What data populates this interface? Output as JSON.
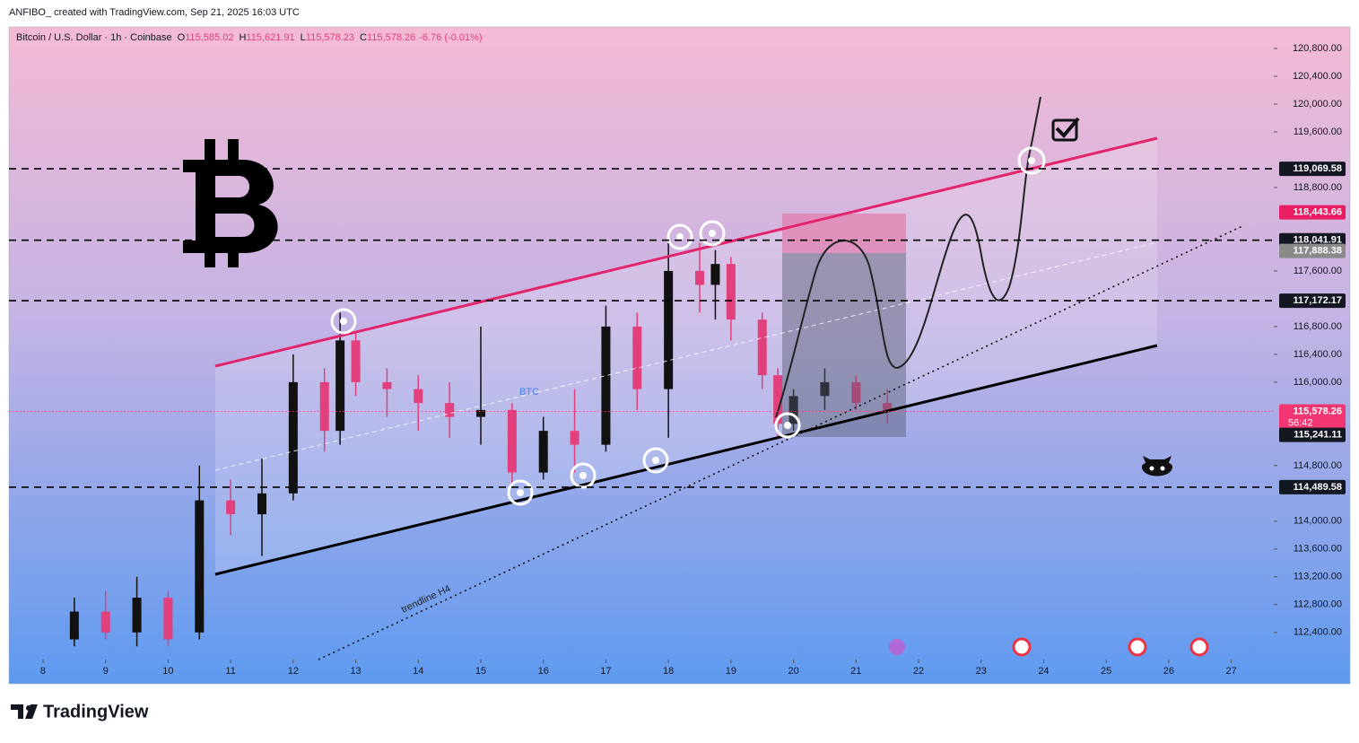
{
  "header": {
    "credit": "ANFIBO_ created with TradingView.com, Sep 21, 2025 16:03 UTC",
    "footer_brand": "TradingView"
  },
  "chart_data": {
    "type": "candlestick",
    "symbol": "Bitcoin / U.S. Dollar · 1h · Coinbase",
    "ohlc_legend": [
      {
        "key": "O",
        "value": "115,585.02"
      },
      {
        "key": "H",
        "value": "115,621.91"
      },
      {
        "key": "L",
        "value": "115,578.23"
      },
      {
        "key": "C",
        "value": "115,578.26"
      }
    ],
    "change": "-6.76 (-0.01%)",
    "up_color": "#111111",
    "down_color": "#e2407c",
    "x": [
      8.5,
      9.0,
      9.5,
      10.0,
      10.5,
      11.0,
      11.5,
      12.0,
      12.5,
      12.75,
      13.0,
      13.5,
      14.0,
      14.5,
      15.0,
      15.5,
      16.0,
      16.5,
      17.0,
      17.5,
      18.0,
      18.5,
      18.75,
      19.0,
      19.5,
      19.75,
      20.0,
      20.5,
      21.0,
      21.5
    ],
    "open": [
      112300,
      112700,
      112400,
      112900,
      112400,
      114300,
      114100,
      114400,
      116000,
      115300,
      116600,
      116000,
      115900,
      115700,
      115500,
      115600,
      114700,
      115300,
      115100,
      116800,
      115900,
      117600,
      117400,
      117700,
      116900,
      116100,
      115400,
      115800,
      116000,
      115700
    ],
    "high": [
      112900,
      113000,
      113200,
      113000,
      114800,
      114600,
      114900,
      116400,
      116200,
      117000,
      116700,
      116200,
      116100,
      116000,
      116800,
      115700,
      115500,
      115900,
      117100,
      117000,
      118000,
      118000,
      117900,
      117800,
      117000,
      116200,
      115900,
      116200,
      116100,
      115900
    ],
    "low": [
      112200,
      112300,
      112200,
      112200,
      112300,
      113800,
      113500,
      114300,
      115000,
      115100,
      115800,
      115500,
      115300,
      115200,
      115100,
      114500,
      114600,
      114700,
      115000,
      115600,
      115200,
      117000,
      116900,
      116600,
      115900,
      115200,
      115300,
      115600,
      115600,
      115400
    ],
    "close": [
      112700,
      112400,
      112900,
      112300,
      114300,
      114100,
      114400,
      116000,
      115300,
      116600,
      116000,
      115900,
      115700,
      115500,
      115600,
      114700,
      115300,
      115100,
      116800,
      115900,
      117600,
      117400,
      117700,
      116900,
      116100,
      115400,
      115800,
      116000,
      115700,
      115600
    ],
    "xlim": [
      7.455,
      27.68
    ],
    "xticks": [
      8,
      9,
      10,
      11,
      12,
      13,
      14,
      15,
      16,
      17,
      18,
      19,
      20,
      21,
      22,
      23,
      24,
      25,
      26,
      27
    ],
    "ylim": [
      112010,
      121110
    ],
    "yticks": [
      {
        "value": 120800,
        "label": "120,800.00"
      },
      {
        "value": 120400,
        "label": "120,400.00"
      },
      {
        "value": 120000,
        "label": "120,000.00"
      },
      {
        "value": 119600,
        "label": "119,600.00"
      },
      {
        "value": 118800,
        "label": "118,800.00"
      },
      {
        "value": 117600,
        "label": "117,600.00"
      },
      {
        "value": 116800,
        "label": "116,800.00"
      },
      {
        "value": 116400,
        "label": "116,400.00"
      },
      {
        "value": 116000,
        "label": "116,000.00"
      },
      {
        "value": 114800,
        "label": "114,800.00"
      },
      {
        "value": 114000,
        "label": "114,000.00"
      },
      {
        "value": 113600,
        "label": "113,600.00"
      },
      {
        "value": 113200,
        "label": "113,200.00"
      },
      {
        "value": 112800,
        "label": "112,800.00"
      },
      {
        "value": 112400,
        "label": "112,400.00"
      }
    ],
    "price_tags": [
      {
        "value": 119069.58,
        "label": "119,069.58",
        "color": "#131722",
        "dashed": true
      },
      {
        "value": 118443.66,
        "label": "118,443.66",
        "color": "#e91e63",
        "dashed": false
      },
      {
        "value": 118041.91,
        "label": "118,041.91",
        "color": "#131722",
        "dashed": true
      },
      {
        "value": 117888.38,
        "label": "117,888.38",
        "color": "#8a8a8a",
        "dashed": false
      },
      {
        "value": 117172.17,
        "label": "117,172.17",
        "color": "#131722",
        "dashed": true
      },
      {
        "value": 115578.26,
        "label": "115,578.26",
        "color": "#f23672",
        "dashed": false,
        "countdown": "56:42"
      },
      {
        "value": 115241.11,
        "label": "115,241.11",
        "color": "#131722",
        "dashed": false
      },
      {
        "value": 114489.58,
        "label": "114,489.58",
        "color": "#131722",
        "dashed": true
      }
    ],
    "annotations": {
      "channel_label": "BTC",
      "trendline_label": "trendline H4"
    }
  }
}
